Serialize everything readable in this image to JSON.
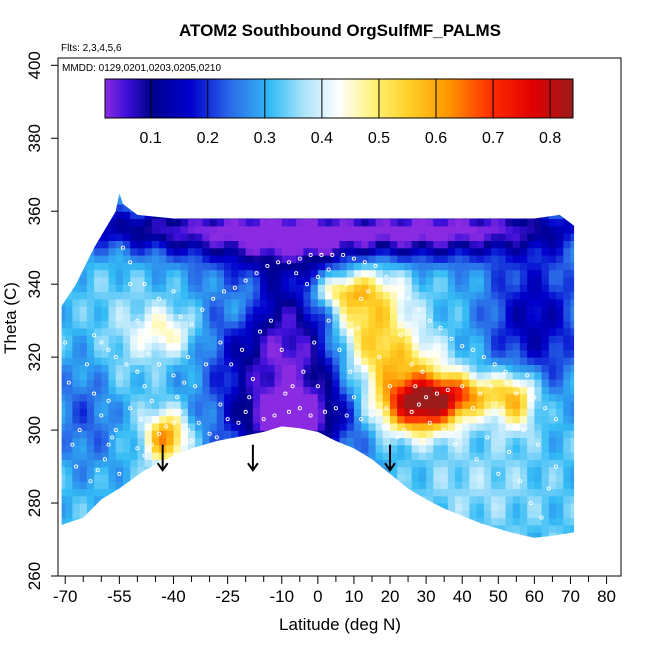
{
  "chart_data": {
    "type": "heatmap",
    "title": "ATOM2 Southbound OrgSulfMF_PALMS",
    "notes": {
      "flights": "Flts: 2,3,4,5,6",
      "dates": "MMDD: 0129,0201,0203,0205,0210"
    },
    "xlabel": "Latitude (deg N)",
    "ylabel": "Theta (C)",
    "xlim": [
      -72,
      84
    ],
    "ylim": [
      260,
      402
    ],
    "x_tick_labels": [
      -70,
      -55,
      -40,
      -25,
      -10,
      0,
      10,
      20,
      30,
      40,
      50,
      60,
      70,
      80
    ],
    "x_minor_ticks": [
      -65,
      -60,
      -50,
      -45,
      -35,
      -30,
      -20,
      -15,
      -5,
      5,
      15,
      25,
      35,
      45,
      55,
      65,
      75
    ],
    "y_ticks": [
      260,
      280,
      300,
      320,
      340,
      360,
      380,
      400
    ],
    "colorbar": {
      "range": [
        0.02,
        0.84
      ],
      "tick_labels": [
        "0.1",
        "0.2",
        "0.3",
        "0.4",
        "0.5",
        "0.6",
        "0.7",
        "0.8"
      ],
      "tick_values": [
        0.1,
        0.2,
        0.3,
        0.4,
        0.5,
        0.6,
        0.7,
        0.8
      ],
      "stops": [
        {
          "v": 0.02,
          "c": "#8a2be2"
        },
        {
          "v": 0.06,
          "c": "#3a0fd8"
        },
        {
          "v": 0.1,
          "c": "#00008b"
        },
        {
          "v": 0.17,
          "c": "#0000cd"
        },
        {
          "v": 0.24,
          "c": "#2a6be8"
        },
        {
          "v": 0.31,
          "c": "#33bbf5"
        },
        {
          "v": 0.37,
          "c": "#aee4fb"
        },
        {
          "v": 0.43,
          "c": "#ffffff"
        },
        {
          "v": 0.49,
          "c": "#fff27a"
        },
        {
          "v": 0.55,
          "c": "#ffd22a"
        },
        {
          "v": 0.62,
          "c": "#ff9800"
        },
        {
          "v": 0.7,
          "c": "#ff2a00"
        },
        {
          "v": 0.77,
          "c": "#e00000"
        },
        {
          "v": 0.84,
          "c": "#9b1c1c"
        }
      ]
    },
    "domain_boundary": {
      "upper": [
        [
          -71,
          334
        ],
        [
          -67,
          340
        ],
        [
          -62,
          350
        ],
        [
          -56,
          360
        ],
        [
          -55,
          365
        ],
        [
          -54,
          362
        ],
        [
          -50,
          359
        ],
        [
          -40,
          358
        ],
        [
          -30,
          358
        ],
        [
          -20,
          358
        ],
        [
          -10,
          358
        ],
        [
          0,
          358
        ],
        [
          10,
          358
        ],
        [
          20,
          358
        ],
        [
          30,
          358
        ],
        [
          40,
          358
        ],
        [
          50,
          358
        ],
        [
          60,
          358
        ],
        [
          67,
          359
        ],
        [
          71,
          356
        ]
      ],
      "lower": [
        [
          -71,
          274
        ],
        [
          -65,
          276
        ],
        [
          -60,
          281
        ],
        [
          -55,
          284
        ],
        [
          -48,
          289
        ],
        [
          -44,
          291
        ],
        [
          -40,
          293
        ],
        [
          -35,
          295
        ],
        [
          -28,
          297
        ],
        [
          -20,
          298.5
        ],
        [
          -15,
          299.5
        ],
        [
          -10,
          301
        ],
        [
          -5,
          300.5
        ],
        [
          0,
          299.5
        ],
        [
          5,
          297
        ],
        [
          10,
          295
        ],
        [
          15,
          292
        ],
        [
          20,
          288
        ],
        [
          25,
          284
        ],
        [
          30,
          281
        ],
        [
          35,
          278.5
        ],
        [
          40,
          276.5
        ],
        [
          45,
          274.5
        ],
        [
          50,
          273
        ],
        [
          55,
          271.5
        ],
        [
          60,
          270.5
        ],
        [
          65,
          271
        ],
        [
          71,
          272
        ]
      ]
    },
    "field_features": [
      {
        "x": -8,
        "y": 318,
        "sx": 14,
        "sy": 22,
        "v": -0.3
      },
      {
        "x": 5,
        "y": 352,
        "sx": 35,
        "sy": 5,
        "v": -0.22
      },
      {
        "x": -40,
        "y": 356,
        "sx": 25,
        "sy": 4,
        "v": -0.18
      },
      {
        "x": 40,
        "y": 356,
        "sx": 25,
        "sy": 4,
        "v": -0.2
      },
      {
        "x": 60,
        "y": 330,
        "sx": 10,
        "sy": 14,
        "v": -0.18
      },
      {
        "x": -63,
        "y": 305,
        "sx": 8,
        "sy": 12,
        "v": -0.1
      },
      {
        "x": -8,
        "y": 304,
        "sx": 8,
        "sy": 4,
        "v": -0.2
      },
      {
        "x": 13,
        "y": 332,
        "sx": 8,
        "sy": 10,
        "v": 0.3
      },
      {
        "x": 22,
        "y": 318,
        "sx": 9,
        "sy": 6,
        "v": 0.2
      },
      {
        "x": 28,
        "y": 306,
        "sx": 8,
        "sy": 5,
        "v": 0.42
      },
      {
        "x": 38,
        "y": 310,
        "sx": 11,
        "sy": 4,
        "v": 0.28
      },
      {
        "x": 55,
        "y": 308,
        "sx": 4,
        "sy": 6,
        "v": 0.22
      },
      {
        "x": -42,
        "y": 298,
        "sx": 4,
        "sy": 5,
        "v": 0.32
      },
      {
        "x": -42,
        "y": 327,
        "sx": 6,
        "sy": 5,
        "v": 0.15
      },
      {
        "x": -20,
        "y": 334,
        "sx": 4,
        "sy": 5,
        "v": 0.1
      },
      {
        "x": 5,
        "y": 338,
        "sx": 6,
        "sy": 3,
        "v": 0.16
      },
      {
        "x": -55,
        "y": 318,
        "sx": 6,
        "sy": 15,
        "v": 0.05
      },
      {
        "x": 45,
        "y": 285,
        "sx": 12,
        "sy": 8,
        "v": 0.04
      }
    ],
    "field_base": 0.32,
    "sample_points": [
      [
        -58,
        296
      ],
      [
        -57,
        298
      ],
      [
        -56,
        300
      ],
      [
        -59,
        292
      ],
      [
        -50,
        295
      ],
      [
        -48,
        293
      ],
      [
        -46,
        296
      ],
      [
        -44,
        299
      ],
      [
        -42,
        301
      ],
      [
        -40,
        302
      ],
      [
        -38,
        305
      ],
      [
        -36,
        300
      ],
      [
        -35,
        297
      ],
      [
        -33,
        302
      ],
      [
        -30,
        299
      ],
      [
        -28,
        298
      ],
      [
        -25,
        303
      ],
      [
        -22,
        302
      ],
      [
        -20,
        305
      ],
      [
        -15,
        303
      ],
      [
        -12,
        304
      ],
      [
        -8,
        305
      ],
      [
        -5,
        306
      ],
      [
        -2,
        304
      ],
      [
        2,
        305
      ],
      [
        5,
        306
      ],
      [
        8,
        304
      ],
      [
        12,
        303
      ],
      [
        15,
        304
      ],
      [
        18,
        301
      ],
      [
        22,
        298
      ],
      [
        24,
        300
      ],
      [
        26,
        305
      ],
      [
        28,
        307
      ],
      [
        30,
        309
      ],
      [
        33,
        310
      ],
      [
        36,
        311
      ],
      [
        40,
        312
      ],
      [
        45,
        310
      ],
      [
        48,
        312
      ],
      [
        52,
        313
      ],
      [
        55,
        310
      ],
      [
        58,
        315
      ],
      [
        -62,
        326
      ],
      [
        -60,
        324
      ],
      [
        -58,
        322
      ],
      [
        -56,
        320
      ],
      [
        -53,
        318
      ],
      [
        -50,
        316
      ],
      [
        -47,
        321
      ],
      [
        -44,
        326
      ],
      [
        -41,
        328
      ],
      [
        -38,
        331
      ],
      [
        -35,
        329
      ],
      [
        -32,
        333
      ],
      [
        -29,
        336
      ],
      [
        -26,
        338
      ],
      [
        -23,
        339
      ],
      [
        -20,
        341
      ],
      [
        -17,
        343
      ],
      [
        -14,
        345
      ],
      [
        -11,
        346
      ],
      [
        -8,
        346
      ],
      [
        -5,
        347
      ],
      [
        -2,
        348
      ],
      [
        1,
        348
      ],
      [
        4,
        348
      ],
      [
        7,
        348
      ],
      [
        10,
        347
      ],
      [
        13,
        346
      ],
      [
        16,
        345
      ],
      [
        19,
        342
      ],
      [
        22,
        339
      ],
      [
        25,
        336
      ],
      [
        28,
        333
      ],
      [
        31,
        330
      ],
      [
        34,
        328
      ],
      [
        37,
        325
      ],
      [
        40,
        323
      ],
      [
        43,
        322
      ],
      [
        46,
        320
      ],
      [
        49,
        318
      ],
      [
        52,
        316
      ],
      [
        56,
        312
      ],
      [
        60,
        309
      ],
      [
        63,
        306
      ],
      [
        66,
        303
      ],
      [
        -54,
        350
      ],
      [
        -52,
        340
      ],
      [
        -50,
        330
      ],
      [
        -48,
        312
      ],
      [
        -46,
        308
      ],
      [
        -44,
        318
      ],
      [
        -40,
        315
      ],
      [
        -36,
        320
      ],
      [
        -34,
        312
      ],
      [
        -31,
        318
      ],
      [
        -27,
        324
      ],
      [
        -24,
        318
      ],
      [
        -21,
        322
      ],
      [
        -18,
        314
      ],
      [
        -16,
        327
      ],
      [
        -13,
        330
      ],
      [
        -10,
        322
      ],
      [
        -7,
        312
      ],
      [
        -4,
        316
      ],
      [
        -1,
        324
      ],
      [
        3,
        330
      ],
      [
        6,
        322
      ],
      [
        9,
        316
      ],
      [
        11,
        328
      ],
      [
        14,
        338
      ],
      [
        17,
        320
      ],
      [
        20,
        312
      ],
      [
        23,
        326
      ],
      [
        26,
        318
      ],
      [
        29,
        316
      ],
      [
        32,
        322
      ],
      [
        35,
        300
      ],
      [
        38,
        296
      ],
      [
        41,
        302
      ],
      [
        44,
        292
      ],
      [
        47,
        298
      ],
      [
        50,
        288
      ],
      [
        53,
        294
      ],
      [
        56,
        286
      ],
      [
        59,
        280
      ],
      [
        62,
        276
      ],
      [
        64,
        284
      ],
      [
        66,
        290
      ],
      [
        -62,
        310
      ],
      [
        -60,
        304
      ],
      [
        -58,
        308
      ],
      [
        -64,
        318
      ],
      [
        -66,
        300
      ],
      [
        -67,
        290
      ],
      [
        -68,
        296
      ],
      [
        -69,
        313
      ],
      [
        -70,
        324
      ],
      [
        -63,
        286
      ],
      [
        -61,
        289
      ],
      [
        -55,
        288
      ],
      [
        -52,
        306
      ],
      [
        -49,
        303
      ],
      [
        -39,
        309
      ],
      [
        -37,
        313
      ],
      [
        -27,
        307
      ],
      [
        -19,
        309
      ],
      [
        -9,
        310
      ],
      [
        0,
        312
      ],
      [
        10,
        309
      ],
      [
        19,
        306
      ],
      [
        27,
        312
      ],
      [
        31,
        302
      ],
      [
        43,
        306
      ],
      [
        51,
        306
      ],
      [
        57,
        300
      ],
      [
        61,
        296
      ],
      [
        -52,
        346
      ],
      [
        -48,
        340
      ],
      [
        -44,
        336
      ],
      [
        -40,
        338
      ],
      [
        -6,
        343
      ],
      [
        -3,
        340
      ],
      [
        0,
        342
      ],
      [
        3,
        344
      ],
      [
        8,
        340
      ],
      [
        12,
        336
      ]
    ],
    "arrows": [
      -43,
      -18,
      20
    ],
    "arrow_span_theta": [
      296,
      289
    ]
  }
}
